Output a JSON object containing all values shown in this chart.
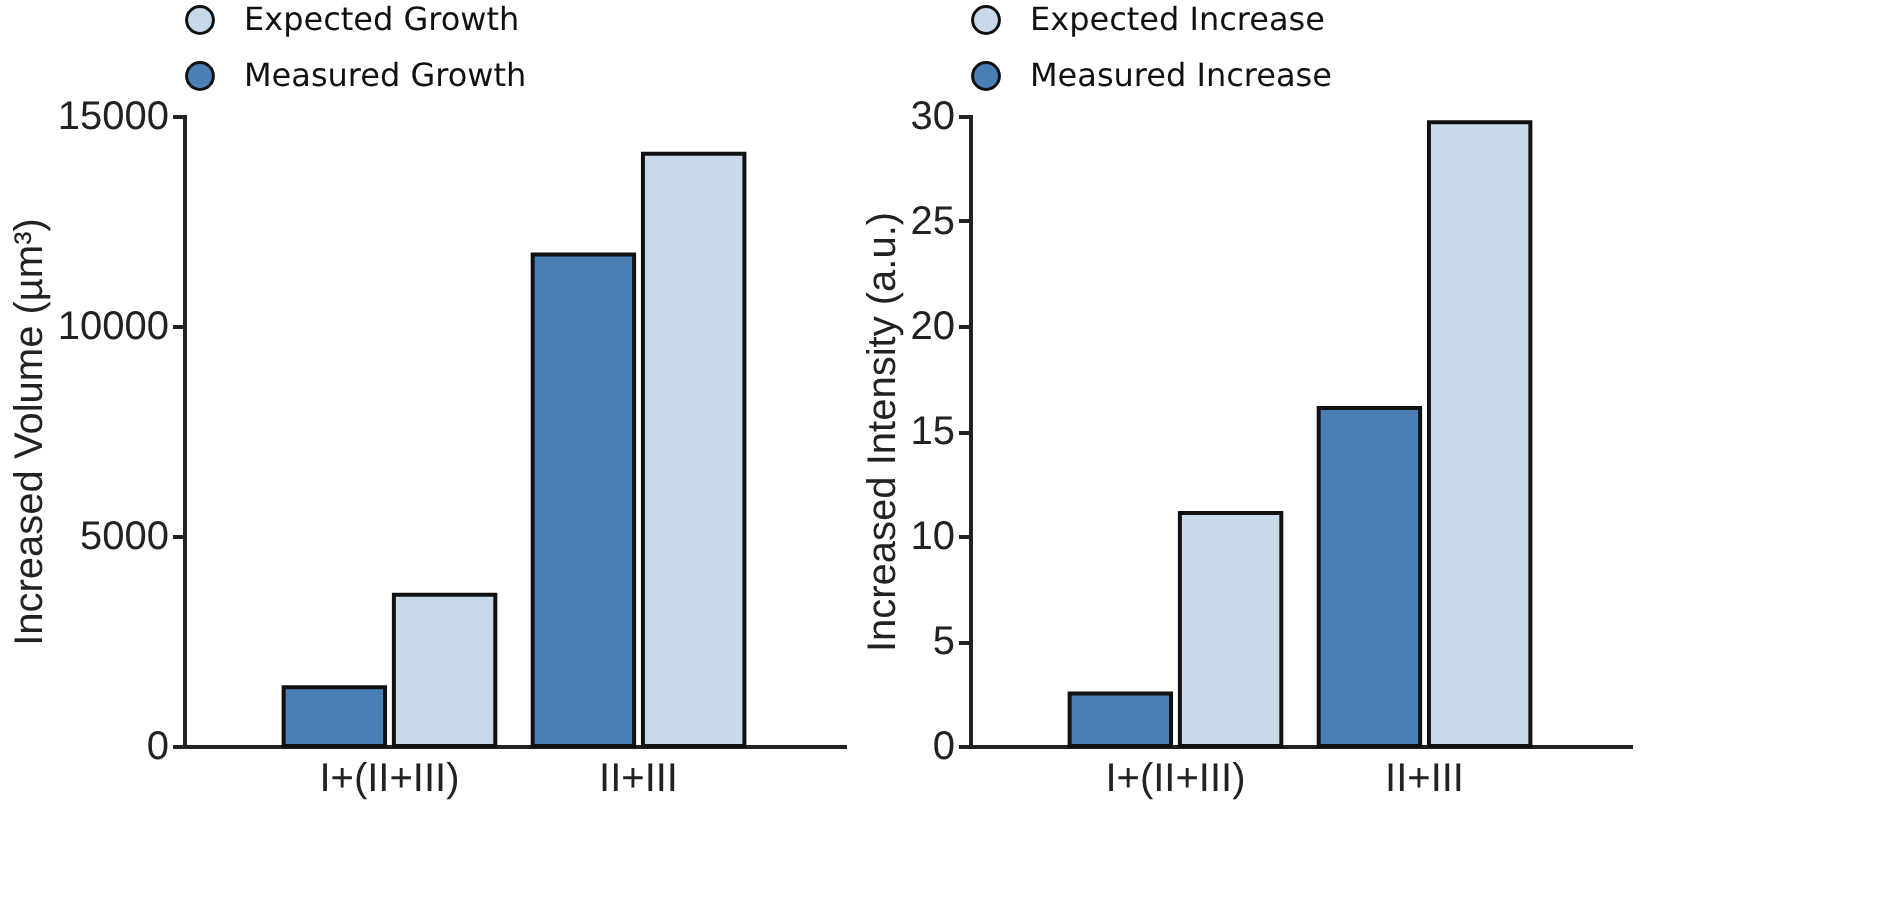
{
  "chart_data": [
    {
      "type": "bar",
      "categories": [
        "I+(II+III)",
        "II+III"
      ],
      "ylabel": "Increased Volume (µm³)",
      "ylim": [
        0,
        15000
      ],
      "yticks": [
        0,
        5000,
        10000,
        15000
      ],
      "legend": "top",
      "grid": false,
      "series": [
        {
          "name": "Expected Growth",
          "color": "#c8d9ea",
          "values": [
            3600,
            14100
          ]
        },
        {
          "name": "Measured Growth",
          "color": "#4a7fb5",
          "values": [
            1400,
            11700
          ]
        }
      ]
    },
    {
      "type": "bar",
      "categories": [
        "I+(II+III)",
        "II+III"
      ],
      "ylabel": "Increased Intensity (a.u.)",
      "ylim": [
        0,
        30
      ],
      "yticks": [
        0,
        5,
        10,
        15,
        20,
        25,
        30
      ],
      "legend": "top",
      "grid": false,
      "series": [
        {
          "name": "Expected Increase",
          "color": "#c8d9ea",
          "values": [
            11.1,
            29.7
          ]
        },
        {
          "name": "Measured Increase",
          "color": "#4a7fb5",
          "values": [
            2.5,
            16.1
          ]
        }
      ]
    }
  ]
}
